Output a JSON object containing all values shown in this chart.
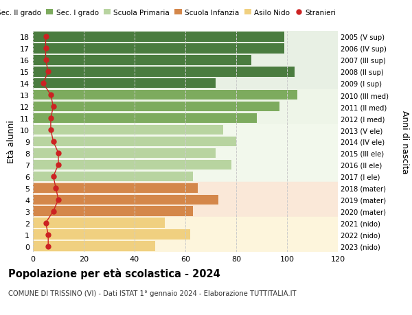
{
  "ages": [
    18,
    17,
    16,
    15,
    14,
    13,
    12,
    11,
    10,
    9,
    8,
    7,
    6,
    5,
    4,
    3,
    2,
    1,
    0
  ],
  "bar_values": [
    99,
    99,
    86,
    103,
    72,
    104,
    97,
    88,
    75,
    80,
    72,
    78,
    63,
    65,
    73,
    63,
    52,
    62,
    48
  ],
  "stranieri": [
    5,
    5,
    5,
    6,
    4,
    7,
    8,
    7,
    7,
    8,
    10,
    10,
    8,
    9,
    10,
    8,
    5,
    6,
    6
  ],
  "right_labels": [
    "2005 (V sup)",
    "2006 (IV sup)",
    "2007 (III sup)",
    "2008 (II sup)",
    "2009 (I sup)",
    "2010 (III med)",
    "2011 (II med)",
    "2012 (I med)",
    "2013 (V ele)",
    "2014 (IV ele)",
    "2015 (III ele)",
    "2016 (II ele)",
    "2017 (I ele)",
    "2018 (mater)",
    "2019 (mater)",
    "2020 (mater)",
    "2021 (nido)",
    "2022 (nido)",
    "2023 (nido)"
  ],
  "bar_colors": [
    "#4a7c3f",
    "#4a7c3f",
    "#4a7c3f",
    "#4a7c3f",
    "#4a7c3f",
    "#7dab5e",
    "#7dab5e",
    "#7dab5e",
    "#b8d4a0",
    "#b8d4a0",
    "#b8d4a0",
    "#b8d4a0",
    "#b8d4a0",
    "#d4874a",
    "#d4874a",
    "#d4874a",
    "#f0d080",
    "#f0d080",
    "#f0d080"
  ],
  "row_bg_colors": [
    "#e8f0e4",
    "#e8f0e4",
    "#e8f0e4",
    "#e8f0e4",
    "#e8f0e4",
    "#eef5e8",
    "#eef5e8",
    "#eef5e8",
    "#f2f8ec",
    "#f2f8ec",
    "#f2f8ec",
    "#f2f8ec",
    "#f2f8ec",
    "#fae8d8",
    "#fae8d8",
    "#fae8d8",
    "#fdf5dc",
    "#fdf5dc",
    "#fdf5dc"
  ],
  "legend_labels": [
    "Sec. II grado",
    "Sec. I grado",
    "Scuola Primaria",
    "Scuola Infanzia",
    "Asilo Nido",
    "Stranieri"
  ],
  "legend_colors": [
    "#4a7c3f",
    "#7dab5e",
    "#b8d4a0",
    "#d4874a",
    "#f0d080",
    "#cc2222"
  ],
  "stranieri_color": "#cc2222",
  "title": "Popolazione per età scolastica - 2024",
  "subtitle": "COMUNE DI TRISSINO (VI) - Dati ISTAT 1° gennaio 2024 - Elaborazione TUTTITALIA.IT",
  "ylabel_left": "Età alunni",
  "ylabel_right": "Anni di nascita",
  "xlim": [
    0,
    120
  ],
  "xticks": [
    0,
    20,
    40,
    60,
    80,
    100,
    120
  ],
  "bg_color": "#ffffff",
  "grid_color": "#cccccc"
}
